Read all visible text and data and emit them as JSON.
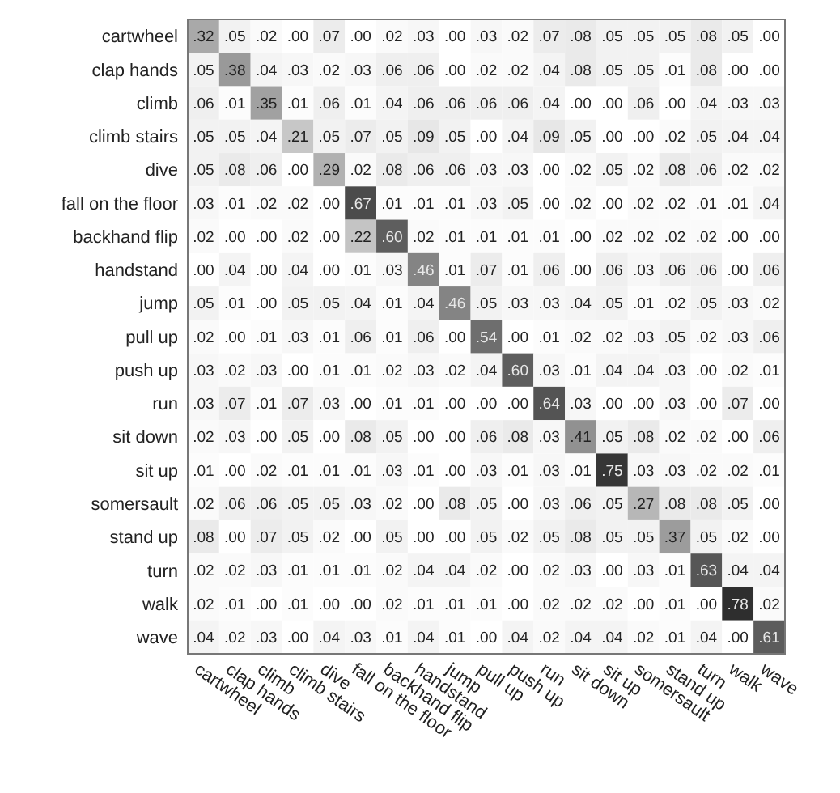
{
  "chart_data": {
    "type": "heatmap",
    "categories": [
      "cartwheel",
      "clap hands",
      "climb",
      "climb stairs",
      "dive",
      "fall on the floor",
      "backhand flip",
      "handstand",
      "jump",
      "pull up",
      "push up",
      "run",
      "sit down",
      "sit up",
      "somersault",
      "stand up",
      "turn",
      "walk",
      "wave"
    ],
    "y_categories": [
      "cartwheel",
      "clap hands",
      "climb",
      "climb stairs",
      "dive",
      "fall on the floor",
      "backhand flip",
      "handstand",
      "jump",
      "pull up",
      "push up",
      "run",
      "sit down",
      "sit up",
      "somersault",
      "stand up",
      "turn",
      "walk",
      "wave"
    ],
    "cells": [
      [
        0.32,
        0.05,
        0.02,
        0.0,
        0.07,
        0.0,
        0.02,
        0.03,
        0.0,
        0.03,
        0.02,
        0.07,
        0.08,
        0.05,
        0.05,
        0.05,
        0.08,
        0.05,
        0.0
      ],
      [
        0.05,
        0.38,
        0.04,
        0.03,
        0.02,
        0.03,
        0.06,
        0.06,
        0.0,
        0.02,
        0.02,
        0.04,
        0.08,
        0.05,
        0.05,
        0.01,
        0.08,
        0.0,
        0.0
      ],
      [
        0.06,
        0.01,
        0.35,
        0.01,
        0.06,
        0.01,
        0.04,
        0.06,
        0.06,
        0.06,
        0.06,
        0.04,
        0.0,
        0.0,
        0.06,
        0.0,
        0.04,
        0.03,
        0.03
      ],
      [
        0.05,
        0.05,
        0.04,
        0.21,
        0.05,
        0.07,
        0.05,
        0.09,
        0.05,
        0.0,
        0.04,
        0.09,
        0.05,
        0.0,
        0.0,
        0.02,
        0.05,
        0.04,
        0.04
      ],
      [
        0.05,
        0.08,
        0.06,
        0.0,
        0.29,
        0.02,
        0.08,
        0.06,
        0.06,
        0.03,
        0.03,
        0.0,
        0.02,
        0.05,
        0.02,
        0.08,
        0.06,
        0.02,
        0.02
      ],
      [
        0.03,
        0.01,
        0.02,
        0.02,
        0.0,
        0.67,
        0.01,
        0.01,
        0.01,
        0.03,
        0.05,
        0.0,
        0.02,
        0.0,
        0.02,
        0.02,
        0.01,
        0.01,
        0.04
      ],
      [
        0.02,
        0.0,
        0.0,
        0.02,
        0.0,
        0.22,
        0.6,
        0.02,
        0.01,
        0.01,
        0.01,
        0.01,
        0.0,
        0.02,
        0.02,
        0.02,
        0.02,
        0.0,
        0.0
      ],
      [
        0.0,
        0.04,
        0.0,
        0.04,
        0.0,
        0.01,
        0.03,
        0.46,
        0.01,
        0.07,
        0.01,
        0.06,
        0.0,
        0.06,
        0.03,
        0.06,
        0.06,
        0.0,
        0.06
      ],
      [
        0.05,
        0.01,
        0.0,
        0.05,
        0.05,
        0.04,
        0.01,
        0.04,
        0.46,
        0.05,
        0.03,
        0.03,
        0.04,
        0.05,
        0.01,
        0.02,
        0.05,
        0.03,
        0.02
      ],
      [
        0.02,
        0.0,
        0.01,
        0.03,
        0.01,
        0.06,
        0.01,
        0.06,
        0.0,
        0.54,
        0.0,
        0.01,
        0.02,
        0.02,
        0.03,
        0.05,
        0.02,
        0.03,
        0.06
      ],
      [
        0.03,
        0.02,
        0.03,
        0.0,
        0.01,
        0.01,
        0.02,
        0.03,
        0.02,
        0.04,
        0.6,
        0.03,
        0.01,
        0.04,
        0.04,
        0.03,
        0.0,
        0.02,
        0.01
      ],
      [
        0.03,
        0.07,
        0.01,
        0.07,
        0.03,
        0.0,
        0.01,
        0.01,
        0.0,
        0.0,
        0.0,
        0.64,
        0.03,
        0.0,
        0.0,
        0.03,
        0.0,
        0.07,
        0.0
      ],
      [
        0.02,
        0.03,
        0.0,
        0.05,
        0.0,
        0.08,
        0.05,
        0.0,
        0.0,
        0.06,
        0.08,
        0.03,
        0.41,
        0.05,
        0.08,
        0.02,
        0.02,
        0.0,
        0.06
      ],
      [
        0.01,
        0.0,
        0.02,
        0.01,
        0.01,
        0.01,
        0.03,
        0.01,
        0.0,
        0.03,
        0.01,
        0.03,
        0.01,
        0.75,
        0.03,
        0.03,
        0.02,
        0.02,
        0.01
      ],
      [
        0.02,
        0.06,
        0.06,
        0.05,
        0.05,
        0.03,
        0.02,
        0.0,
        0.08,
        0.05,
        0.0,
        0.03,
        0.06,
        0.05,
        0.27,
        0.08,
        0.08,
        0.05,
        0.0
      ],
      [
        0.08,
        0.0,
        0.07,
        0.05,
        0.02,
        0.0,
        0.05,
        0.0,
        0.0,
        0.05,
        0.02,
        0.05,
        0.08,
        0.05,
        0.05,
        0.37,
        0.05,
        0.02,
        0.0
      ],
      [
        0.02,
        0.02,
        0.03,
        0.01,
        0.01,
        0.01,
        0.02,
        0.04,
        0.04,
        0.02,
        0.0,
        0.02,
        0.03,
        0.0,
        0.03,
        0.01,
        0.63,
        0.04,
        0.04
      ],
      [
        0.02,
        0.01,
        0.0,
        0.01,
        0.0,
        0.0,
        0.02,
        0.01,
        0.01,
        0.01,
        0.0,
        0.02,
        0.02,
        0.02,
        0.0,
        0.01,
        0.0,
        0.78,
        0.02
      ],
      [
        0.04,
        0.02,
        0.03,
        0.0,
        0.04,
        0.03,
        0.01,
        0.04,
        0.01,
        0.0,
        0.04,
        0.02,
        0.04,
        0.04,
        0.02,
        0.01,
        0.04,
        0.0,
        0.61
      ]
    ],
    "cell_labels": [
      [
        ".32",
        ".05",
        ".02",
        ".00",
        ".07",
        ".00",
        ".02",
        ".03",
        ".00",
        ".03",
        ".02",
        ".07",
        ".08",
        ".05",
        ".05",
        ".05",
        ".08",
        ".05",
        ".00"
      ],
      [
        ".05",
        ".38",
        ".04",
        ".03",
        ".02",
        ".03",
        ".06",
        ".06",
        ".00",
        ".02",
        ".02",
        ".04",
        ".08",
        ".05",
        ".05",
        ".01",
        ".08",
        ".00",
        ".00"
      ],
      [
        ".06",
        ".01",
        ".35",
        ".01",
        ".06",
        ".01",
        ".04",
        ".06",
        ".06",
        ".06",
        ".06",
        ".04",
        ".00",
        ".00",
        ".06",
        ".00",
        ".04",
        ".03",
        ".03"
      ],
      [
        ".05",
        ".05",
        ".04",
        ".21",
        ".05",
        ".07",
        ".05",
        ".09",
        ".05",
        ".00",
        ".04",
        ".09",
        ".05",
        ".00",
        ".00",
        ".02",
        ".05",
        ".04",
        ".04"
      ],
      [
        ".05",
        ".08",
        ".06",
        ".00",
        ".29",
        ".02",
        ".08",
        ".06",
        ".06",
        ".03",
        ".03",
        ".00",
        ".02",
        ".05",
        ".02",
        ".08",
        ".06",
        ".02",
        ".02"
      ],
      [
        ".03",
        ".01",
        ".02",
        ".02",
        ".00",
        ".67",
        ".01",
        ".01",
        ".01",
        ".03",
        ".05",
        ".00",
        ".02",
        ".00",
        ".02",
        ".02",
        ".01",
        ".01",
        ".04"
      ],
      [
        ".02",
        ".00",
        ".00",
        ".02",
        ".00",
        ".22",
        ".60",
        ".02",
        ".01",
        ".01",
        ".01",
        ".01",
        ".00",
        ".02",
        ".02",
        ".02",
        ".02",
        ".00",
        ".00"
      ],
      [
        ".00",
        ".04",
        ".00",
        ".04",
        ".00",
        ".01",
        ".03",
        ".46",
        ".01",
        ".07",
        ".01",
        ".06",
        ".00",
        ".06",
        ".03",
        ".06",
        ".06",
        ".00",
        ".06"
      ],
      [
        ".05",
        ".01",
        ".00",
        ".05",
        ".05",
        ".04",
        ".01",
        ".04",
        ".46",
        ".05",
        ".03",
        ".03",
        ".04",
        ".05",
        ".01",
        ".02",
        ".05",
        ".03",
        ".02"
      ],
      [
        ".02",
        ".00",
        ".01",
        ".03",
        ".01",
        ".06",
        ".01",
        ".06",
        ".00",
        ".54",
        ".00",
        ".01",
        ".02",
        ".02",
        ".03",
        ".05",
        ".02",
        ".03",
        ".06"
      ],
      [
        ".03",
        ".02",
        ".03",
        ".00",
        ".01",
        ".01",
        ".02",
        ".03",
        ".02",
        ".04",
        ".60",
        ".03",
        ".01",
        ".04",
        ".04",
        ".03",
        ".00",
        ".02",
        ".01"
      ],
      [
        ".03",
        ".07",
        ".01",
        ".07",
        ".03",
        ".00",
        ".01",
        ".01",
        ".00",
        ".00",
        ".00",
        ".64",
        ".03",
        ".00",
        ".00",
        ".03",
        ".00",
        ".07",
        ".00"
      ],
      [
        ".02",
        ".03",
        ".00",
        ".05",
        ".00",
        ".08",
        ".05",
        ".00",
        ".00",
        ".06",
        ".08",
        ".03",
        ".41",
        ".05",
        ".08",
        ".02",
        ".02",
        ".00",
        ".06"
      ],
      [
        ".01",
        ".00",
        ".02",
        ".01",
        ".01",
        ".01",
        ".03",
        ".01",
        ".00",
        ".03",
        ".01",
        ".03",
        ".01",
        ".75",
        ".03",
        ".03",
        ".02",
        ".02",
        ".01"
      ],
      [
        ".02",
        ".06",
        ".06",
        ".05",
        ".05",
        ".03",
        ".02",
        ".00",
        ".08",
        ".05",
        ".00",
        ".03",
        ".06",
        ".05",
        ".27",
        ".08",
        ".08",
        ".05",
        ".00"
      ],
      [
        ".08",
        ".00",
        ".07",
        ".05",
        ".02",
        ".00",
        ".05",
        ".00",
        ".00",
        ".05",
        ".02",
        ".05",
        ".08",
        ".05",
        ".05",
        ".37",
        ".05",
        ".02",
        ".00"
      ],
      [
        ".02",
        ".02",
        ".03",
        ".01",
        ".01",
        ".01",
        ".02",
        ".04",
        ".04",
        ".02",
        ".00",
        ".02",
        ".03",
        ".00",
        ".03",
        ".01",
        ".63",
        ".04",
        ".04"
      ],
      [
        ".02",
        ".01",
        ".00",
        ".01",
        ".00",
        ".00",
        ".02",
        ".01",
        ".01",
        ".01",
        ".00",
        ".02",
        ".02",
        ".02",
        ".00",
        ".01",
        ".00",
        ".78",
        ".02"
      ],
      [
        ".04",
        ".02",
        ".03",
        ".00",
        ".04",
        ".03",
        ".01",
        ".04",
        ".01",
        ".00",
        ".04",
        ".02",
        ".04",
        ".04",
        ".02",
        ".01",
        ".04",
        ".00",
        ".61"
      ]
    ]
  }
}
